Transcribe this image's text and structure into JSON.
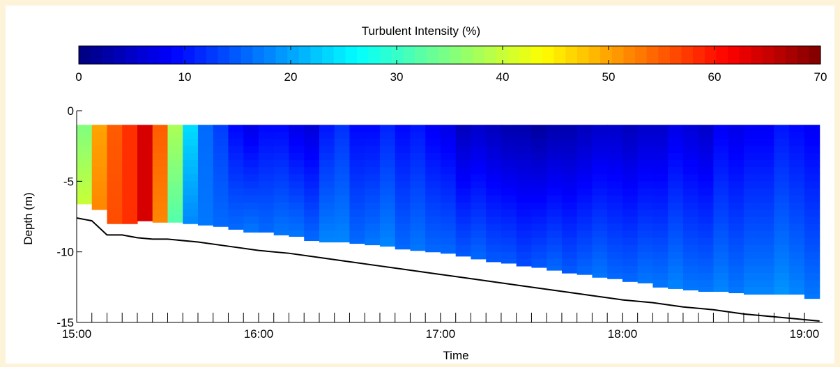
{
  "chart_data": {
    "type": "heatmap",
    "title": "",
    "colorbar": {
      "label": "Turbulent Intensity (%)",
      "min": 0,
      "max": 70,
      "ticks": [
        0,
        10,
        20,
        30,
        40,
        50,
        60,
        70
      ],
      "tick_labels": [
        "0",
        "10",
        "20",
        "30",
        "40",
        "50",
        "60",
        "70"
      ],
      "colormap": "jet"
    },
    "xlabel": "Time",
    "ylabel": "Depth (m)",
    "x_axis": {
      "type": "time",
      "range": [
        "15:00",
        "19:06"
      ],
      "ticks": [
        "15:00",
        "16:00",
        "17:00",
        "18:00",
        "19:00"
      ]
    },
    "y_axis": {
      "range": [
        -15,
        0
      ],
      "ticks": [
        0,
        -5,
        -10,
        -15
      ],
      "tick_labels": [
        "0",
        "-5",
        "-10",
        "-15"
      ]
    },
    "profile_interval_minutes": 5,
    "top_depth_m": -1,
    "profile_times": [
      "15:00",
      "15:05",
      "15:10",
      "15:15",
      "15:20",
      "15:25",
      "15:30",
      "15:35",
      "15:40",
      "15:45",
      "15:50",
      "15:55",
      "16:00",
      "16:05",
      "16:10",
      "16:15",
      "16:20",
      "16:25",
      "16:30",
      "16:35",
      "16:40",
      "16:45",
      "16:50",
      "16:55",
      "17:00",
      "17:05",
      "17:10",
      "17:15",
      "17:20",
      "17:25",
      "17:30",
      "17:35",
      "17:40",
      "17:45",
      "17:50",
      "17:55",
      "18:00",
      "18:05",
      "18:10",
      "18:15",
      "18:20",
      "18:25",
      "18:30",
      "18:35",
      "18:40",
      "18:45",
      "18:50",
      "18:55",
      "19:00"
    ],
    "data_bottom_depth_m": [
      -6.6,
      -7.0,
      -8.0,
      -8.0,
      -7.8,
      -7.9,
      -7.9,
      -8.0,
      -8.1,
      -8.2,
      -8.4,
      -8.6,
      -8.6,
      -8.8,
      -8.9,
      -9.2,
      -9.3,
      -9.3,
      -9.4,
      -9.5,
      -9.6,
      -9.8,
      -9.9,
      -10.0,
      -10.1,
      -10.3,
      -10.5,
      -10.7,
      -10.8,
      -11.0,
      -11.1,
      -11.3,
      -11.5,
      -11.6,
      -11.8,
      -11.9,
      -12.1,
      -12.2,
      -12.5,
      -12.6,
      -12.7,
      -12.8,
      -12.8,
      -12.9,
      -13.0,
      -13.0,
      -13.0,
      -13.0,
      -13.3
    ],
    "near_surface_TI_pct": [
      35,
      50,
      55,
      58,
      64,
      55,
      38,
      24,
      16,
      13,
      9,
      7,
      9,
      9,
      7,
      6,
      10,
      12,
      9,
      9,
      11,
      9,
      10,
      8,
      7,
      4,
      5,
      4,
      3,
      3,
      2,
      3,
      3,
      4,
      5,
      5,
      4,
      5,
      5,
      7,
      6,
      5,
      8,
      7,
      8,
      8,
      10,
      9,
      8
    ],
    "near_bottom_TI_pct": [
      40,
      52,
      56,
      58,
      64,
      52,
      32,
      18,
      17,
      16,
      16,
      17,
      16,
      17,
      17,
      16,
      18,
      18,
      16,
      17,
      18,
      16,
      17,
      16,
      16,
      15,
      16,
      15,
      15,
      14,
      15,
      16,
      15,
      16,
      17,
      16,
      16,
      17,
      17,
      18,
      17,
      17,
      18,
      17,
      18,
      18,
      19,
      18,
      17
    ],
    "seabed": {
      "times": [
        "15:00",
        "15:05",
        "15:10",
        "15:15",
        "15:20",
        "15:25",
        "15:30",
        "15:40",
        "15:50",
        "16:00",
        "16:10",
        "16:20",
        "16:30",
        "16:40",
        "16:50",
        "17:00",
        "17:10",
        "17:20",
        "17:30",
        "17:40",
        "17:50",
        "18:00",
        "18:10",
        "18:20",
        "18:30",
        "18:40",
        "18:50",
        "19:00",
        "19:05"
      ],
      "depth_m": [
        -7.6,
        -7.8,
        -8.8,
        -8.8,
        -9.0,
        -9.1,
        -9.1,
        -9.3,
        -9.6,
        -9.9,
        -10.1,
        -10.4,
        -10.7,
        -11.0,
        -11.3,
        -11.6,
        -11.9,
        -12.2,
        -12.5,
        -12.8,
        -13.1,
        -13.4,
        -13.6,
        -13.9,
        -14.1,
        -14.4,
        -14.6,
        -14.8,
        -14.9
      ]
    }
  }
}
